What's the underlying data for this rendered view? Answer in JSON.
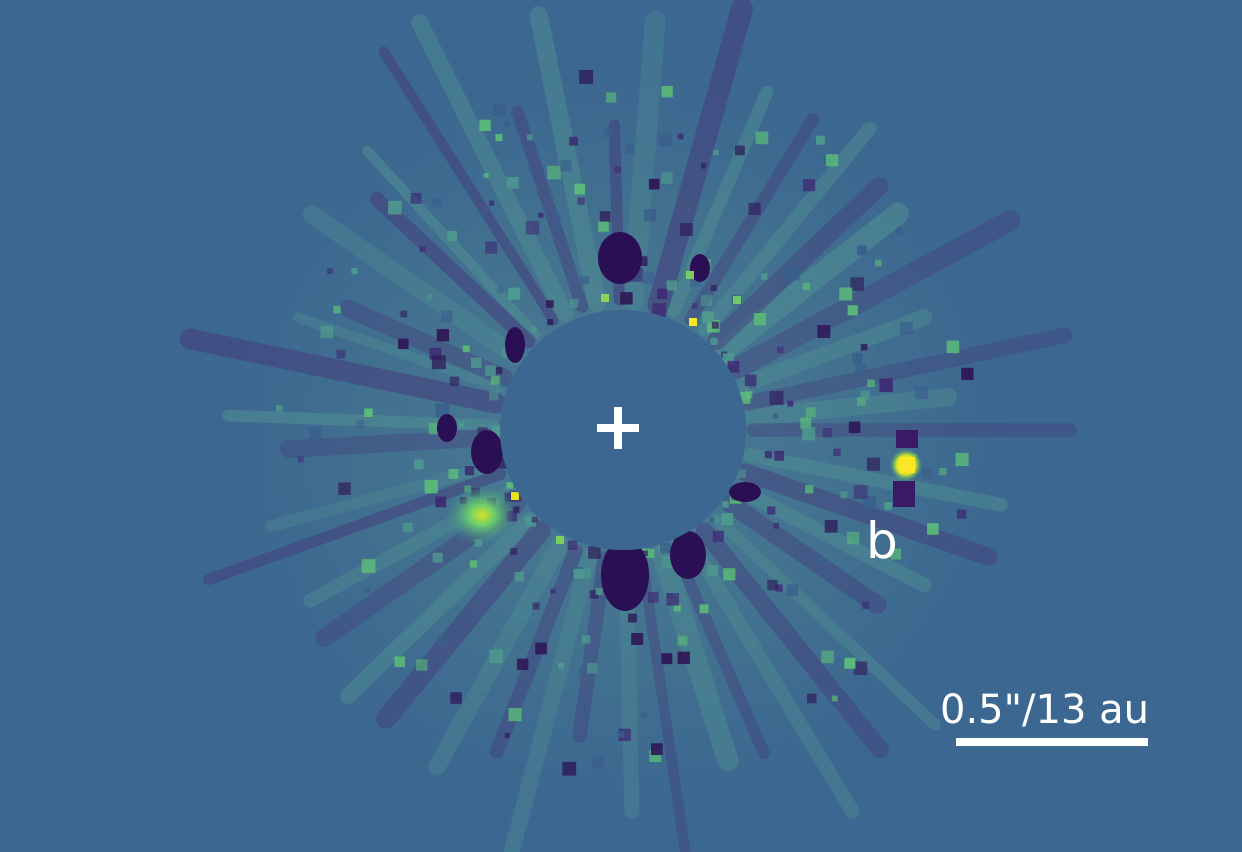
{
  "image": {
    "companion_label": "b",
    "scale_bar_label": "0.5\"/13 au",
    "colors": {
      "background": "#3c6790",
      "dark_speckle": "#3b1b6b",
      "bright_speckle": "#5fcf7a",
      "peak": "#f1e51d",
      "annotation": "#ffffff"
    }
  }
}
